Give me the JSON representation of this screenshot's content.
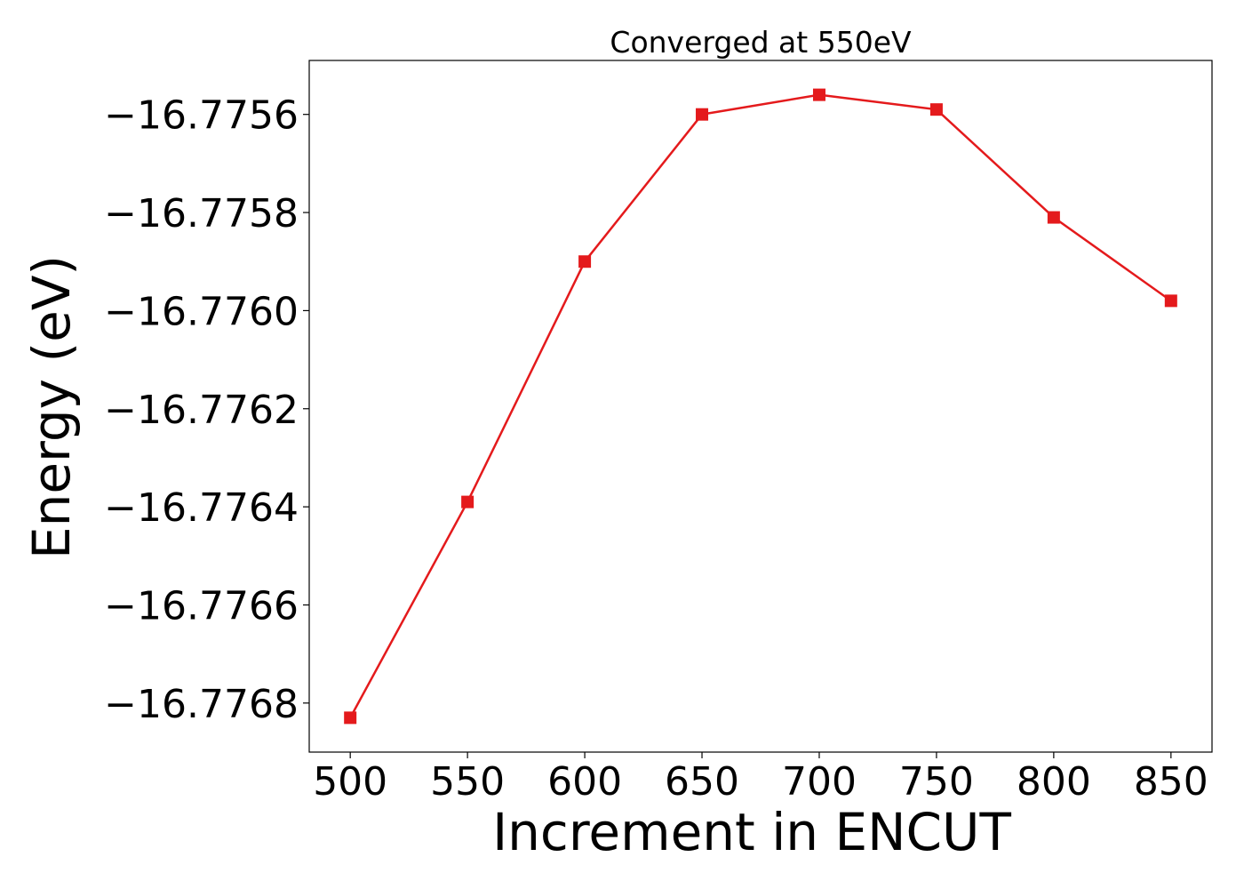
{
  "chart_data": {
    "type": "line",
    "title": "Converged at 550eV",
    "xlabel": "Increment in ENCUT",
    "ylabel": "Energy (eV)",
    "x": [
      500,
      550,
      600,
      650,
      700,
      750,
      800,
      850
    ],
    "series": [
      {
        "values": [
          -16.77683,
          -16.77639,
          -16.7759,
          -16.7756,
          -16.77556,
          -16.77559,
          -16.77581,
          -16.77598
        ]
      }
    ],
    "xticks": [
      500,
      550,
      600,
      650,
      700,
      750,
      800,
      850
    ],
    "xtick_labels": [
      "500",
      "550",
      "600",
      "650",
      "700",
      "750",
      "800",
      "850"
    ],
    "yticks": [
      -16.7768,
      -16.7766,
      -16.7764,
      -16.7762,
      -16.776,
      -16.7758,
      -16.7756
    ],
    "ytick_labels": [
      "−16.7768",
      "−16.7766",
      "−16.7764",
      "−16.7762",
      "−16.7760",
      "−16.7758",
      "−16.7756"
    ],
    "xlim": [
      482.5,
      867.5
    ],
    "ylim": [
      -16.7769,
      -16.77549
    ],
    "line_color": "#e41a1c",
    "marker": "square",
    "grid": false,
    "legend": "none"
  }
}
